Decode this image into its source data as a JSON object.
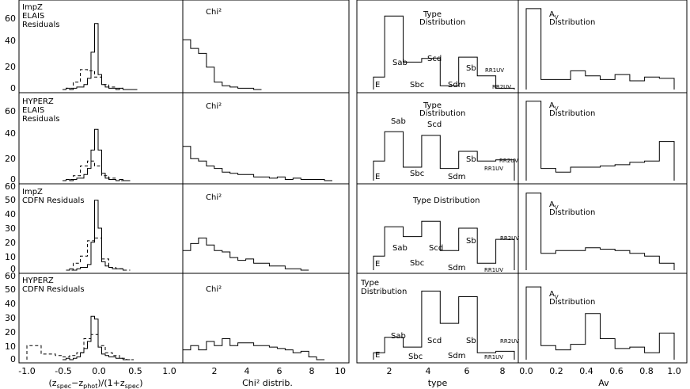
{
  "chart_data": [
    {
      "type": "bar",
      "row": 0,
      "col": 0,
      "ylim": [
        0,
        70
      ],
      "xlim": [
        -1,
        1
      ],
      "annotations": [
        "ImpZ",
        "ELAIS",
        "Residuals"
      ],
      "series": [
        {
          "style": "solid",
          "x": [
            -0.5,
            -0.45,
            -0.4,
            -0.35,
            -0.3,
            -0.25,
            -0.2,
            -0.15,
            -0.1,
            -0.05,
            0,
            0.05,
            0.1,
            0.15,
            0.2,
            0.25,
            0.3,
            0.35,
            0.4,
            0.45,
            0.5
          ],
          "values": [
            0,
            1,
            0,
            1,
            2,
            2,
            4,
            9,
            30,
            53,
            12,
            4,
            2,
            1,
            1,
            0,
            1,
            0,
            0,
            0,
            0
          ]
        },
        {
          "style": "dashed",
          "x": [
            -0.45,
            -0.35,
            -0.25,
            -0.15,
            -0.05,
            0.05,
            0.15,
            0.25,
            0.35
          ],
          "values": [
            1,
            6,
            16,
            15,
            10,
            4,
            2,
            1,
            0
          ]
        }
      ]
    },
    {
      "type": "bar",
      "row": 0,
      "col": 1,
      "ylim": [
        0,
        70
      ],
      "xlim": [
        0,
        10
      ],
      "annotations": [
        "Chi²"
      ],
      "series": [
        {
          "style": "solid",
          "x": [
            0,
            0.5,
            1,
            1.5,
            2,
            2.5,
            3,
            3.5,
            4,
            4.5
          ],
          "values": [
            40,
            33,
            29,
            18,
            6,
            3,
            2,
            1,
            1,
            0
          ]
        }
      ]
    },
    {
      "type": "bar",
      "row": 0,
      "col": 2,
      "ylim": [
        0,
        70
      ],
      "xlim": [
        0,
        10
      ],
      "annotations": [
        "Type",
        "Distribution"
      ],
      "categories": [
        "E",
        "Sab",
        "Sbc",
        "Scd",
        "Sdm",
        "Sb",
        "RR1UV",
        "RR2UV"
      ],
      "series": [
        {
          "style": "solid",
          "x": [
            1,
            1.6,
            2.6,
            3.6,
            4.6,
            5.6,
            6.6,
            7.6
          ],
          "values": [
            10,
            59,
            22,
            25,
            3,
            26,
            11,
            1
          ]
        }
      ]
    },
    {
      "type": "bar",
      "row": 0,
      "col": 3,
      "ylim": [
        0,
        70
      ],
      "xlim": [
        0,
        1
      ],
      "annotations": [
        "Av",
        "Distribution"
      ],
      "series": [
        {
          "style": "solid",
          "x": [
            0,
            0.1,
            0.2,
            0.3,
            0.4,
            0.5,
            0.6,
            0.7,
            0.8,
            0.9
          ],
          "values": [
            65,
            8,
            8,
            15,
            11,
            8,
            12,
            7,
            10,
            9
          ]
        }
      ]
    },
    {
      "type": "bar",
      "row": 1,
      "col": 0,
      "ylim": [
        0,
        70
      ],
      "xlim": [
        -1,
        1
      ],
      "annotations": [
        "HYPERZ",
        "ELAIS",
        "Residuals"
      ],
      "series": [
        {
          "style": "solid",
          "x": [
            -0.5,
            -0.45,
            -0.4,
            -0.35,
            -0.3,
            -0.25,
            -0.2,
            -0.15,
            -0.1,
            -0.05,
            0,
            0.05,
            0.1,
            0.15,
            0.2,
            0.25,
            0.3,
            0.35,
            0.4
          ],
          "values": [
            0,
            1,
            0,
            1,
            2,
            2,
            5,
            10,
            25,
            42,
            25,
            6,
            2,
            1,
            1,
            0,
            1,
            0,
            0
          ]
        },
        {
          "style": "dashed",
          "x": [
            -0.45,
            -0.35,
            -0.25,
            -0.15,
            -0.05,
            0.05,
            0.15,
            0.25
          ],
          "values": [
            1,
            4,
            12,
            16,
            12,
            4,
            2,
            0
          ]
        }
      ]
    },
    {
      "type": "bar",
      "row": 1,
      "col": 1,
      "ylim": [
        0,
        70
      ],
      "xlim": [
        0,
        10
      ],
      "annotations": [
        "Chi²"
      ],
      "series": [
        {
          "style": "solid",
          "x": [
            0,
            0.5,
            1,
            1.5,
            2,
            2.5,
            3,
            3.5,
            4,
            4.5,
            5,
            5.5,
            6,
            6.5,
            7,
            7.5,
            8,
            8.5,
            9
          ],
          "values": [
            28,
            18,
            16,
            12,
            10,
            7,
            6,
            5,
            5,
            3,
            3,
            2,
            3,
            1,
            2,
            1,
            1,
            1,
            0
          ]
        }
      ]
    },
    {
      "type": "bar",
      "row": 1,
      "col": 2,
      "ylim": [
        0,
        70
      ],
      "xlim": [
        0,
        10
      ],
      "annotations": [
        "Type",
        "Distribution"
      ],
      "categories": [
        "E",
        "Sab",
        "Sbc",
        "Scd",
        "Sdm",
        "Sb",
        "RR1UV",
        "RR2UV"
      ],
      "series": [
        {
          "style": "solid",
          "x": [
            1,
            1.6,
            2.6,
            3.6,
            4.6,
            5.6,
            6.6,
            7.6
          ],
          "values": [
            16,
            40,
            11,
            37,
            10,
            24,
            16,
            17
          ]
        }
      ]
    },
    {
      "type": "bar",
      "row": 1,
      "col": 3,
      "ylim": [
        0,
        70
      ],
      "xlim": [
        0,
        1
      ],
      "annotations": [
        "Av",
        "Distribution"
      ],
      "series": [
        {
          "style": "solid",
          "x": [
            0,
            0.1,
            0.2,
            0.3,
            0.4,
            0.5,
            0.6,
            0.7,
            0.8,
            0.9
          ],
          "values": [
            65,
            10,
            7,
            11,
            11,
            12,
            13,
            15,
            16,
            32
          ]
        }
      ]
    },
    {
      "type": "bar",
      "row": 2,
      "col": 0,
      "ylim": [
        0,
        60
      ],
      "xlim": [
        -1,
        1
      ],
      "annotations": [
        "ImpZ",
        "CDFN Residuals"
      ],
      "series": [
        {
          "style": "solid",
          "x": [
            -0.45,
            -0.4,
            -0.35,
            -0.3,
            -0.25,
            -0.2,
            -0.15,
            -0.1,
            -0.05,
            0,
            0.05,
            0.1,
            0.15,
            0.2,
            0.25,
            0.3,
            0.35
          ],
          "values": [
            0,
            1,
            0,
            1,
            2,
            2,
            4,
            20,
            50,
            30,
            6,
            3,
            2,
            1,
            1,
            1,
            0
          ]
        },
        {
          "style": "dashed",
          "x": [
            -0.45,
            -0.35,
            -0.25,
            -0.15,
            -0.05,
            0.05,
            0.15,
            0.25,
            0.35
          ],
          "values": [
            0,
            5,
            10,
            21,
            23,
            8,
            2,
            1,
            0
          ]
        }
      ]
    },
    {
      "type": "bar",
      "row": 2,
      "col": 1,
      "ylim": [
        0,
        60
      ],
      "xlim": [
        0,
        10
      ],
      "annotations": [
        "Chi²"
      ],
      "series": [
        {
          "style": "solid",
          "x": [
            0,
            0.5,
            1,
            1.5,
            2,
            2.5,
            3,
            3.5,
            4,
            4.5,
            5,
            5.5,
            6,
            6.5,
            7,
            7.5
          ],
          "values": [
            14,
            19,
            23,
            18,
            14,
            13,
            9,
            7,
            8,
            5,
            5,
            3,
            3,
            1,
            1,
            0
          ]
        }
      ]
    },
    {
      "type": "bar",
      "row": 2,
      "col": 2,
      "ylim": [
        0,
        60
      ],
      "xlim": [
        0,
        10
      ],
      "annotations": [
        "Type Distribution"
      ],
      "categories": [
        "E",
        "Sab",
        "Sbc",
        "Scd",
        "Sdm",
        "Sb",
        "RR1UV",
        "RR2UV"
      ],
      "series": [
        {
          "style": "solid",
          "x": [
            1,
            1.6,
            2.6,
            3.6,
            4.6,
            5.6,
            6.6,
            7.6
          ],
          "values": [
            10,
            31,
            24,
            35,
            14,
            30,
            5,
            22
          ]
        }
      ]
    },
    {
      "type": "bar",
      "row": 2,
      "col": 3,
      "ylim": [
        0,
        60
      ],
      "xlim": [
        0,
        1
      ],
      "annotations": [
        "Av",
        "Distribution"
      ],
      "series": [
        {
          "style": "solid",
          "x": [
            0,
            0.1,
            0.2,
            0.3,
            0.4,
            0.5,
            0.6,
            0.7,
            0.8,
            0.9
          ],
          "values": [
            55,
            12,
            14,
            14,
            16,
            15,
            14,
            12,
            10,
            5
          ]
        }
      ]
    },
    {
      "type": "bar",
      "row": 3,
      "col": 0,
      "ylim": [
        0,
        60
      ],
      "xlim": [
        -1,
        1
      ],
      "annotations": [
        "HYPERZ",
        "CDFN Residuals"
      ],
      "series": [
        {
          "style": "solid",
          "x": [
            -0.5,
            -0.45,
            -0.4,
            -0.35,
            -0.3,
            -0.25,
            -0.2,
            -0.15,
            -0.1,
            -0.05,
            0,
            0.05,
            0.1,
            0.15,
            0.2,
            0.25,
            0.3,
            0.35,
            0.4
          ],
          "values": [
            0,
            1,
            0,
            1,
            2,
            5,
            8,
            13,
            31,
            29,
            9,
            4,
            3,
            2,
            2,
            1,
            1,
            0,
            0
          ]
        },
        {
          "style": "dashed",
          "x": [
            -1,
            -0.9,
            -0.8,
            -0.7,
            -0.6,
            -0.5,
            -0.4,
            -0.3,
            -0.2,
            -0.1,
            0,
            0.1,
            0.2,
            0.3,
            0.4
          ],
          "values": [
            10,
            10,
            4,
            4,
            3,
            2,
            3,
            5,
            15,
            18,
            10,
            5,
            3,
            1,
            0
          ]
        }
      ]
    },
    {
      "type": "bar",
      "row": 3,
      "col": 1,
      "ylim": [
        0,
        60
      ],
      "xlim": [
        0,
        10
      ],
      "annotations": [
        "Chi²"
      ],
      "series": [
        {
          "style": "solid",
          "x": [
            0,
            0.5,
            1,
            1.5,
            2,
            2.5,
            3,
            3.5,
            4,
            4.5,
            5,
            5.5,
            6,
            6.5,
            7,
            7.5,
            8,
            8.5
          ],
          "values": [
            7,
            10,
            7,
            13,
            10,
            15,
            10,
            12,
            12,
            10,
            10,
            9,
            8,
            7,
            5,
            6,
            2,
            0
          ]
        }
      ]
    },
    {
      "type": "bar",
      "row": 3,
      "col": 2,
      "ylim": [
        0,
        60
      ],
      "xlim": [
        0,
        10
      ],
      "annotations": [
        "Type",
        "Distribution"
      ],
      "categories": [
        "E",
        "Sab",
        "Sbc",
        "Scd",
        "Sdm",
        "Sb",
        "RR1UV",
        "RR2UV"
      ],
      "series": [
        {
          "style": "solid",
          "x": [
            1,
            1.6,
            2.6,
            3.6,
            4.6,
            5.6,
            6.6,
            7.6
          ],
          "values": [
            5,
            16,
            9,
            49,
            26,
            45,
            5,
            6
          ]
        }
      ]
    },
    {
      "type": "bar",
      "row": 3,
      "col": 3,
      "ylim": [
        0,
        60
      ],
      "xlim": [
        0,
        1
      ],
      "annotations": [
        "Av",
        "Distribution"
      ],
      "series": [
        {
          "style": "solid",
          "x": [
            0,
            0.1,
            0.2,
            0.3,
            0.4,
            0.5,
            0.6,
            0.7,
            0.8,
            0.9
          ],
          "values": [
            52,
            10,
            7,
            11,
            33,
            15,
            8,
            9,
            5,
            19
          ]
        }
      ]
    }
  ],
  "axes": {
    "bottom_ticks": [
      [
        "-1.0",
        "-0.5",
        "0.0",
        "0.5",
        "1.0"
      ],
      [
        "2",
        "4",
        "6",
        "8",
        "10"
      ],
      [
        "2",
        "4",
        "6",
        "8"
      ],
      [
        "0.0",
        "0.2",
        "0.4",
        "0.6",
        "0.8",
        "1.0"
      ]
    ],
    "left_ticks_top": [
      "0",
      "20",
      "40",
      "60"
    ],
    "left_ticks_bottom": [
      "0",
      "10",
      "20",
      "30",
      "40",
      "50",
      "60"
    ]
  },
  "labels": {
    "xlabel_1": "Chi² distrib.",
    "xlabel_2": "type",
    "xlabel_3": "Av",
    "residual_label_parts": [
      "(z",
      "spec",
      "−z",
      "phot",
      ")/(1+z",
      "spec",
      ")"
    ]
  },
  "type_labels": {
    "e": "E",
    "sab": "Sab",
    "sbc": "Sbc",
    "scd": "Scd",
    "sdm": "Sdm",
    "sb": "Sb",
    "rr1uv": "RR1UV",
    "rr2uv": "RR2UV"
  },
  "panel_text": {
    "r0c0": [
      "ImpZ",
      "ELAIS",
      "Residuals"
    ],
    "r1c0": [
      "HYPERZ",
      "ELAIS",
      "Residuals"
    ],
    "r2c0": [
      "ImpZ",
      "CDFN Residuals"
    ],
    "r3c0": [
      "HYPERZ",
      "CDFN Residuals"
    ],
    "chi": "Chi²",
    "type_word": "Type",
    "dist_word": "Distribution",
    "type_dist": "Type Distribution",
    "av_main": "A",
    "av_sub": "V"
  }
}
